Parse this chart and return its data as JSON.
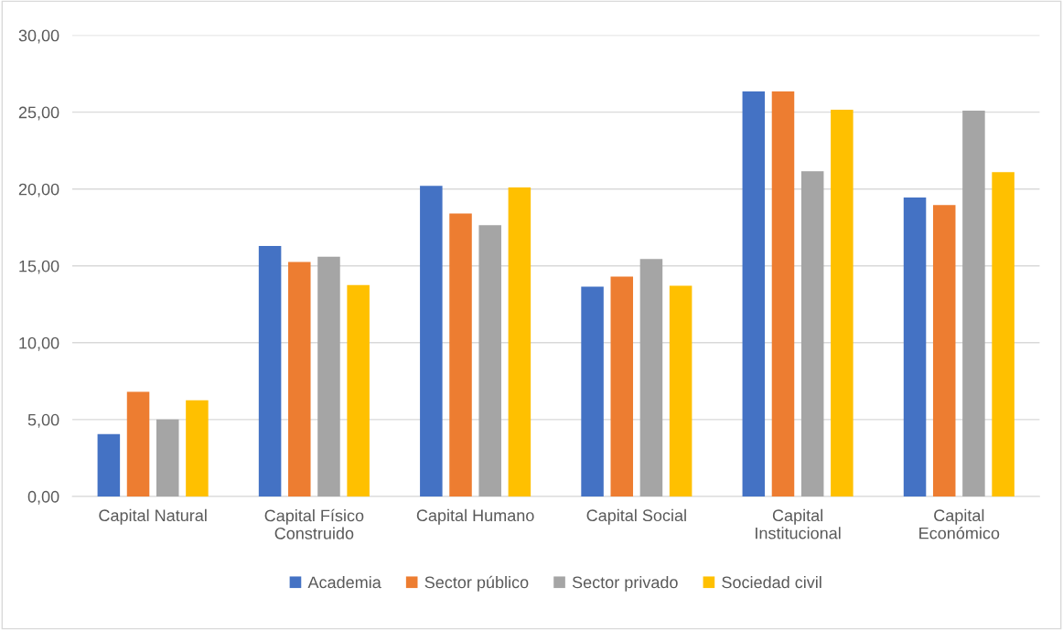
{
  "chart_data": {
    "type": "bar",
    "categories": [
      "Capital Natural",
      "Capital Físico\nConstruido",
      "Capital Humano",
      "Capital Social",
      "Capital\nInstitucional",
      "Capital\nEconómico"
    ],
    "series": [
      {
        "name": "Academia",
        "color": "#4472c4",
        "values": [
          4.05,
          16.3,
          20.2,
          13.65,
          26.35,
          19.45
        ]
      },
      {
        "name": "Sector público",
        "color": "#ed7d31",
        "values": [
          6.8,
          15.25,
          18.4,
          14.3,
          26.35,
          18.95
        ]
      },
      {
        "name": "Sector privado",
        "color": "#a5a5a5",
        "values": [
          5.0,
          15.6,
          17.65,
          15.45,
          21.15,
          25.1
        ]
      },
      {
        "name": "Sociedad civil",
        "color": "#ffc000",
        "values": [
          6.25,
          13.75,
          20.1,
          13.7,
          25.15,
          21.1
        ]
      }
    ],
    "ylim": [
      0,
      30
    ],
    "yticks": [
      {
        "value": 0,
        "label": "0,00"
      },
      {
        "value": 5,
        "label": "5,00"
      },
      {
        "value": 10,
        "label": "10,00"
      },
      {
        "value": 15,
        "label": "15,00"
      },
      {
        "value": 20,
        "label": "20,00"
      },
      {
        "value": 25,
        "label": "25,00"
      },
      {
        "value": 30,
        "label": "30,00"
      }
    ],
    "grid": "y",
    "legend": "bottom"
  }
}
